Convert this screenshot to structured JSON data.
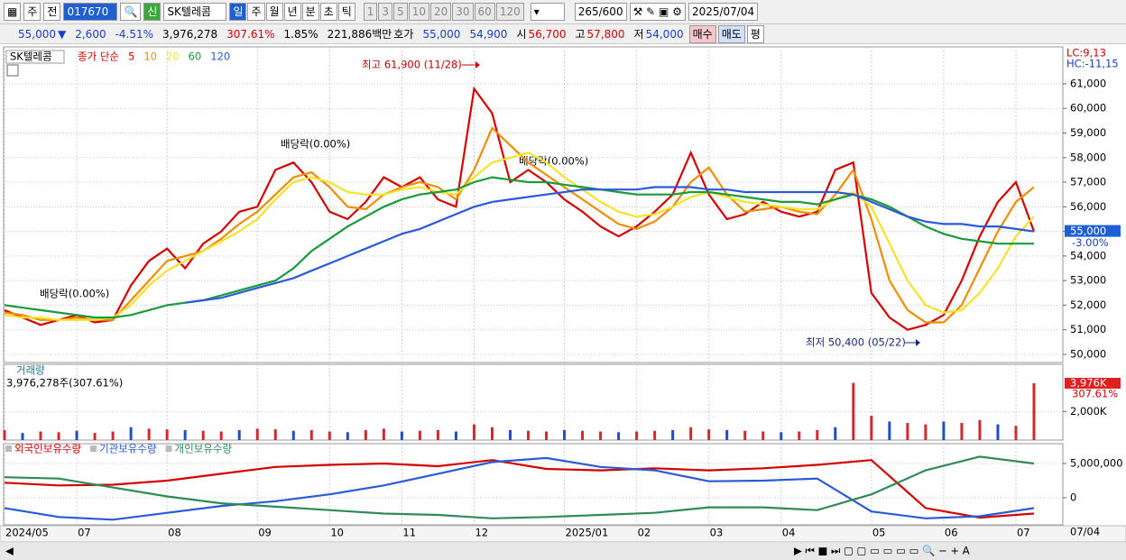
{
  "toolbar": {
    "period": "주",
    "view": "전",
    "code": "017670",
    "flag": "신",
    "name": "SK텔레콤",
    "intervals": [
      "일",
      "주",
      "월",
      "년",
      "분",
      "초",
      "틱"
    ],
    "steps": [
      "1",
      "3",
      "5",
      "10",
      "20",
      "30",
      "60",
      "120"
    ],
    "count": "265",
    "max": "/600",
    "date": "2025/07/04"
  },
  "quote": {
    "price": "55,000",
    "arrow": "▼",
    "change": "2,600",
    "rate": "-4.51%",
    "volume": "3,976,278",
    "volume_rate": "307.61%",
    "turnover": "1.85%",
    "amount": "221,886백만",
    "ask_label": "호가",
    "ask": "55,000",
    "bid": "54,900",
    "open_label": "시",
    "open": "56,700",
    "high_label": "고",
    "high": "57,800",
    "low_label": "저",
    "low": "54,000",
    "buy": "매수",
    "sell": "매도",
    "avg": "평"
  },
  "chart_data": [
    {
      "type": "line",
      "name": "SK텔레콤",
      "legend_title": "종가 단순",
      "lc": "LC:9,13",
      "hc": "HC:-11,15",
      "current_label": "55,000",
      "current_change": "-3.00%",
      "categories": [
        "2024/05",
        null,
        null,
        null,
        "07",
        null,
        null,
        null,
        null,
        "08",
        null,
        null,
        null,
        null,
        "09",
        null,
        null,
        null,
        "10",
        null,
        null,
        null,
        "11",
        null,
        null,
        null,
        "12",
        null,
        null,
        null,
        null,
        "2025/01",
        null,
        null,
        null,
        "02",
        null,
        null,
        null,
        "03",
        null,
        null,
        null,
        "04",
        null,
        null,
        null,
        null,
        "05",
        null,
        null,
        null,
        "06",
        null,
        null,
        null,
        "07",
        null
      ],
      "x_end_label": "07/04",
      "ylim": [
        49670,
        62500
      ],
      "yticks": [
        {
          "value": 50000,
          "label": "50,000"
        },
        {
          "value": 51000,
          "label": "51,000"
        },
        {
          "value": 52000,
          "label": "52,000"
        },
        {
          "value": 53000,
          "label": "53,000"
        },
        {
          "value": 54000,
          "label": "54,000"
        },
        {
          "value": 55000,
          "label": "55,000"
        },
        {
          "value": 56000,
          "label": "56,000"
        },
        {
          "value": 57000,
          "label": "57,000"
        },
        {
          "value": 58000,
          "label": "58,000"
        },
        {
          "value": 59000,
          "label": "59,000"
        },
        {
          "value": 60000,
          "label": "60,000"
        },
        {
          "value": 61000,
          "label": "61,000"
        }
      ],
      "grid": true,
      "series": [
        {
          "name": "5",
          "color": "#d40000",
          "values": [
            51800,
            51500,
            51200,
            51400,
            51600,
            51300,
            51400,
            52800,
            53800,
            54300,
            53500,
            54500,
            55000,
            55800,
            56000,
            57500,
            57800,
            57000,
            55800,
            55500,
            56200,
            57200,
            56800,
            57200,
            56300,
            56000,
            60800,
            59800,
            57000,
            57500,
            57000,
            56300,
            55800,
            55200,
            54800,
            55200,
            55800,
            56500,
            58200,
            56500,
            55500,
            55700,
            56200,
            55800,
            55600,
            55800,
            57500,
            57800,
            52500,
            51500,
            51000,
            51200,
            51600,
            53000,
            54800,
            56200,
            57000,
            55000
          ]
        },
        {
          "name": "10",
          "color": "#f08c00",
          "values": [
            51700,
            51600,
            51400,
            51400,
            51500,
            51400,
            51400,
            52200,
            53000,
            53800,
            54000,
            54200,
            54700,
            55300,
            55800,
            56500,
            57200,
            57400,
            56800,
            56000,
            55900,
            56500,
            56800,
            57000,
            56800,
            56300,
            57500,
            59200,
            58500,
            57800,
            57300,
            56800,
            56300,
            55800,
            55300,
            55100,
            55400,
            56000,
            57000,
            57600,
            56500,
            55800,
            55900,
            56000,
            55800,
            55700,
            56500,
            57500,
            55500,
            53000,
            51800,
            51300,
            51300,
            52000,
            53500,
            55000,
            56200,
            56800
          ]
        },
        {
          "name": "20",
          "color": "#f5e22a",
          "values": [
            51600,
            51500,
            51500,
            51400,
            51400,
            51400,
            51500,
            52000,
            52800,
            53400,
            53800,
            54200,
            54600,
            55000,
            55500,
            56300,
            57000,
            57200,
            57000,
            56600,
            56500,
            56500,
            56700,
            56800,
            56600,
            56500,
            57200,
            57800,
            58000,
            58200,
            57800,
            57200,
            56700,
            56200,
            55800,
            55600,
            55700,
            56000,
            56400,
            56600,
            56400,
            56200,
            56100,
            56000,
            55900,
            55900,
            56300,
            56600,
            56000,
            54500,
            53000,
            52000,
            51700,
            51800,
            52500,
            53500,
            54800,
            55600
          ]
        },
        {
          "name": "60",
          "color": "#1a9a3a",
          "values": [
            52000,
            51900,
            51800,
            51700,
            51600,
            51500,
            51500,
            51600,
            51800,
            52000,
            52100,
            52200,
            52400,
            52600,
            52800,
            53000,
            53500,
            54200,
            54700,
            55200,
            55600,
            56000,
            56300,
            56500,
            56600,
            56700,
            57000,
            57200,
            57100,
            57000,
            57000,
            56900,
            56800,
            56700,
            56600,
            56500,
            56500,
            56500,
            56600,
            56600,
            56500,
            56400,
            56300,
            56200,
            56200,
            56100,
            56300,
            56500,
            56300,
            56000,
            55600,
            55200,
            54900,
            54700,
            54600,
            54500,
            54500,
            54500
          ]
        },
        {
          "name": "120",
          "color": "#2a5ad8",
          "values": [
            null,
            null,
            null,
            null,
            null,
            null,
            null,
            null,
            null,
            null,
            52100,
            52200,
            52300,
            52500,
            52700,
            52900,
            53100,
            53400,
            53700,
            54000,
            54300,
            54600,
            54900,
            55100,
            55400,
            55700,
            56000,
            56200,
            56300,
            56400,
            56500,
            56600,
            56700,
            56700,
            56700,
            56700,
            56800,
            56800,
            56800,
            56700,
            56700,
            56600,
            56600,
            56600,
            56600,
            56600,
            56600,
            56500,
            56200,
            55900,
            55600,
            55400,
            55300,
            55300,
            55200,
            55200,
            55100,
            55000
          ]
        }
      ],
      "annotations": [
        "최고 61,900 (11/28)",
        "최저 50,400 (05/22)",
        "배당락(0.00%)",
        "배당락(0.00%)",
        "배당락(0.00%)"
      ]
    },
    {
      "type": "bar",
      "title": "거래량",
      "subtitle": "3,976,278주(307.61%)",
      "current_label": "3,976K",
      "current_change": "307.61%",
      "ylim": [
        0,
        5300
      ],
      "yticks": [
        {
          "value": 2000,
          "label": "2,000K"
        }
      ],
      "grid": true,
      "series": [
        {
          "name": "거래량",
          "color": "#d02a2a",
          "values": [
            700,
            500,
            600,
            550,
            650,
            500,
            600,
            900,
            800,
            750,
            700,
            650,
            600,
            700,
            800,
            750,
            650,
            700,
            600,
            550,
            700,
            800,
            600,
            650,
            700,
            600,
            1100,
            900,
            700,
            650,
            600,
            700,
            650,
            600,
            550,
            600,
            650,
            700,
            900,
            750,
            700,
            650,
            600,
            550,
            600,
            700,
            900,
            4000,
            1700,
            1300,
            1200,
            1100,
            1300,
            1200,
            1400,
            1100,
            1000,
            3976
          ]
        }
      ]
    },
    {
      "type": "line",
      "ylim": [
        -3950000,
        7890000
      ],
      "yticks": [
        0,
        {
          "value": 5000000,
          "label": "5,000,000"
        }
      ],
      "grid": true,
      "series": [
        {
          "name": "외국인보유수량",
          "color": "#d40000",
          "values": [
            2200000,
            1800000,
            1900000,
            2500000,
            3500000,
            4500000,
            4800000,
            5000000,
            4600000,
            5500000,
            4200000,
            4000000,
            4300000,
            4000000,
            4300000,
            4800000,
            5500000,
            -1500000,
            -2900000,
            -2300000
          ]
        },
        {
          "name": "기관보유수량",
          "color": "#2a5ad8",
          "values": [
            -1500000,
            -2800000,
            -3200000,
            -2200000,
            -1200000,
            -500000,
            500000,
            1800000,
            3500000,
            5200000,
            5800000,
            4500000,
            4000000,
            2400000,
            2500000,
            2800000,
            -2000000,
            -3000000,
            -2700000,
            -1500000
          ]
        },
        {
          "name": "개인보유수량",
          "color": "#2e8b57",
          "values": [
            3000000,
            2800000,
            1500000,
            200000,
            -800000,
            -1300000,
            -1800000,
            -2300000,
            -2500000,
            -3000000,
            -2800000,
            -2500000,
            -2200000,
            -1400000,
            -1400000,
            -1800000,
            500000,
            4000000,
            6000000,
            5000000
          ]
        }
      ]
    }
  ]
}
